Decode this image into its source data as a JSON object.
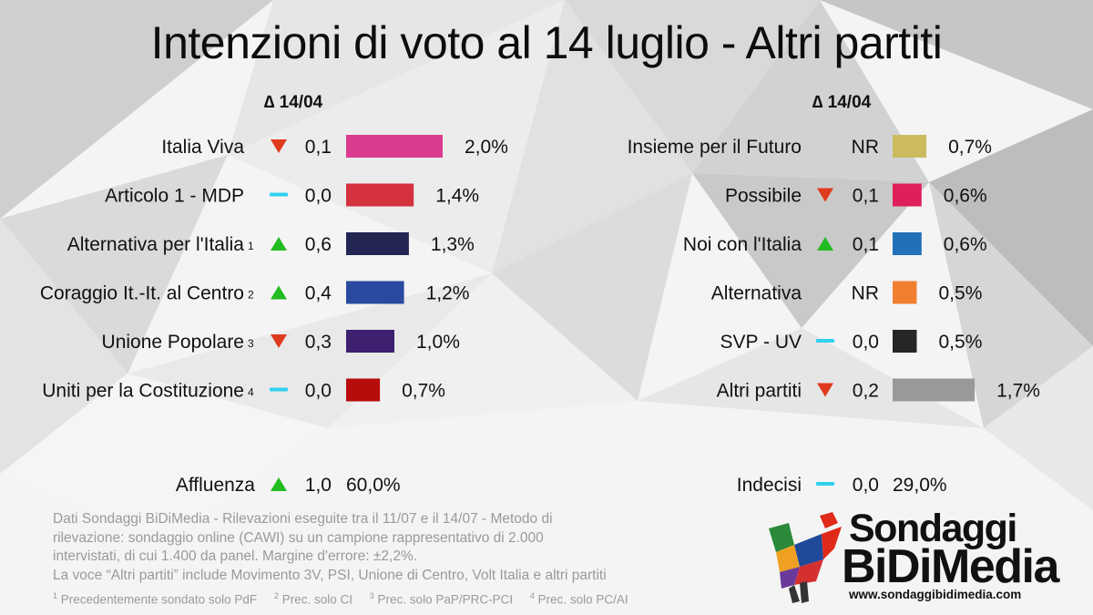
{
  "title": "Intenzioni di voto al 14 luglio - Altri partiti",
  "delta_header": "∆ 14/04",
  "colors": {
    "up": "#22bb22",
    "down": "#e03a1e",
    "same": "#2fd0f0"
  },
  "chart_data": {
    "type": "bar",
    "left": [
      {
        "label": "Italia Viva",
        "note": "",
        "trend": "down",
        "delta": "0,1",
        "value": 2.0,
        "value_label": "2,0%",
        "color": "#dc3c8f"
      },
      {
        "label": "Articolo 1 - MDP",
        "note": "",
        "trend": "same",
        "delta": "0,0",
        "value": 1.4,
        "value_label": "1,4%",
        "color": "#d4323f"
      },
      {
        "label": "Alternativa per l'Italia",
        "note": "1",
        "trend": "up",
        "delta": "0,6",
        "value": 1.3,
        "value_label": "1,3%",
        "color": "#232553"
      },
      {
        "label": "Coraggio It.-It. al Centro",
        "note": "2",
        "trend": "up",
        "delta": "0,4",
        "value": 1.2,
        "value_label": "1,2%",
        "color": "#2a4aa0"
      },
      {
        "label": "Unione Popolare",
        "note": "3",
        "trend": "down",
        "delta": "0,3",
        "value": 1.0,
        "value_label": "1,0%",
        "color": "#3d2170"
      },
      {
        "label": "Uniti per la Costituzione",
        "note": "4",
        "trend": "same",
        "delta": "0,0",
        "value": 0.7,
        "value_label": "0,7%",
        "color": "#b80c0c"
      }
    ],
    "right": [
      {
        "label": "Insieme per il Futuro",
        "note": "",
        "trend": "none",
        "delta": "NR",
        "value": 0.7,
        "value_label": "0,7%",
        "color": "#cbbb5e"
      },
      {
        "label": "Possibile",
        "note": "",
        "trend": "down",
        "delta": "0,1",
        "value": 0.6,
        "value_label": "0,6%",
        "color": "#e01f5a"
      },
      {
        "label": "Noi con l'Italia",
        "note": "",
        "trend": "up",
        "delta": "0,1",
        "value": 0.6,
        "value_label": "0,6%",
        "color": "#2270b8"
      },
      {
        "label": "Alternativa",
        "note": "",
        "trend": "none",
        "delta": "NR",
        "value": 0.5,
        "value_label": "0,5%",
        "color": "#f08030"
      },
      {
        "label": "SVP - UV",
        "note": "",
        "trend": "same",
        "delta": "0,0",
        "value": 0.5,
        "value_label": "0,5%",
        "color": "#262626"
      },
      {
        "label": "Altri partiti",
        "note": "",
        "trend": "down",
        "delta": "0,2",
        "value": 1.7,
        "value_label": "1,7%",
        "color": "#999999"
      }
    ],
    "extra": [
      {
        "label": "Affluenza",
        "trend": "up",
        "delta": "1,0",
        "value_label": "60,0%"
      },
      {
        "label": "Indecisi",
        "trend": "same",
        "delta": "0,0",
        "value_label": "29,0%"
      }
    ]
  },
  "footer": {
    "lines": [
      "Dati Sondaggi BiDiMedia - Rilevazioni eseguite tra il 11/07 e il 14/07 - Metodo di",
      "rilevazione: sondaggio online (CAWI) su un campione rappresentativo di 2.000",
      "intervistati, di cui 1.400 da panel. Margine d'errore: ±2,2%.",
      "La voce “Altri partiti” include Movimento 3V, PSI,  Unione di Centro, Volt Italia e altri partiti"
    ],
    "sources": [
      {
        "num": "1",
        "text": "Precedentemente sondato solo PdF"
      },
      {
        "num": "2",
        "text": "Prec. solo CI"
      },
      {
        "num": "3",
        "text": "Prec. solo PaP/PRC-PCI"
      },
      {
        "num": "4",
        "text": "Prec. solo PC/AI"
      }
    ]
  },
  "logo": {
    "line1": "Sondaggi",
    "line2": "BiDiMedia",
    "url": "www.sondaggibidimedia.com"
  }
}
